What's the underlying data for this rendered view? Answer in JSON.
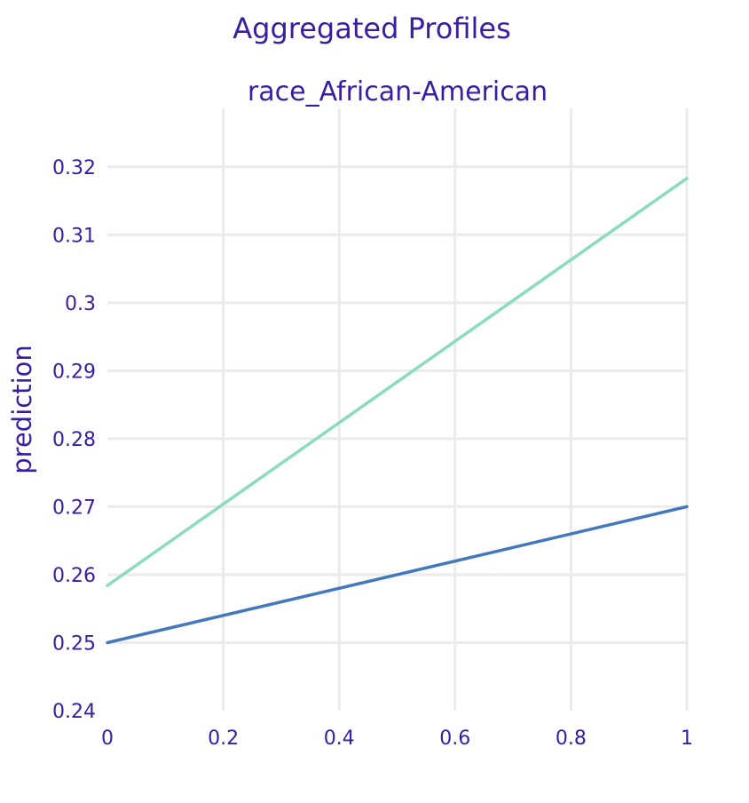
{
  "chart_data": {
    "type": "line",
    "title": "Aggregated Profiles",
    "subtitle": "race_African-American",
    "xlabel": "",
    "ylabel": "prediction",
    "xlim": [
      0,
      1
    ],
    "ylim": [
      0.24,
      0.32
    ],
    "x_ticks": [
      "0",
      "0.2",
      "0.4",
      "0.6",
      "0.8",
      "1"
    ],
    "y_ticks": [
      "0.24",
      "0.25",
      "0.26",
      "0.27",
      "0.28",
      "0.29",
      "0.3",
      "0.31",
      "0.32"
    ],
    "grid": true,
    "series": [
      {
        "color": "#8bdcbe",
        "x": [
          0,
          1
        ],
        "y": [
          0.2584,
          0.3183
        ]
      },
      {
        "color": "#4378bf",
        "x": [
          0,
          1
        ],
        "y": [
          0.25,
          0.27
        ]
      }
    ]
  }
}
